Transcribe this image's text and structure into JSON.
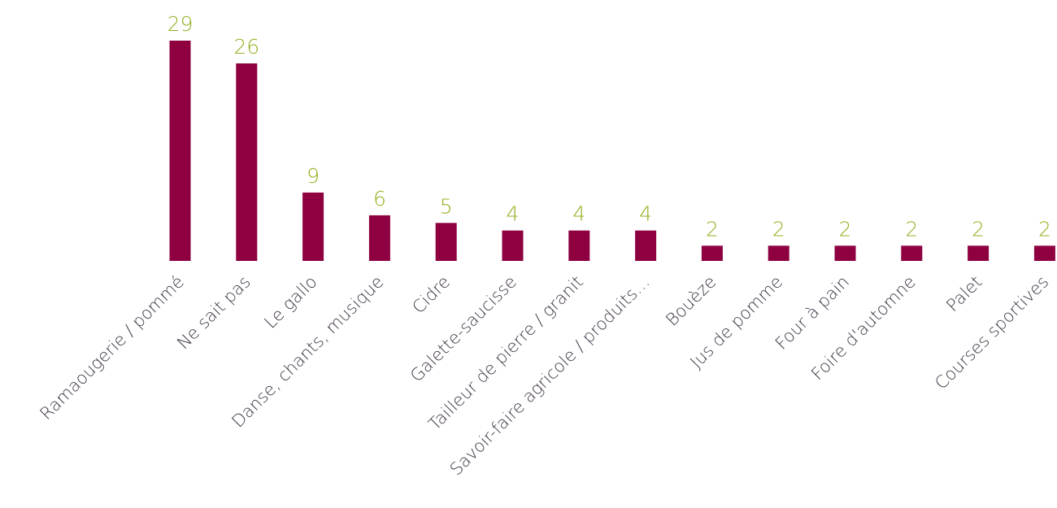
{
  "chart_data": {
    "type": "bar",
    "title": "",
    "xlabel": "",
    "ylabel": "",
    "ylim": [
      0,
      29
    ],
    "grid": false,
    "legend": "none",
    "categories": [
      "Ramaougerie / pommé",
      "Ne sait pas",
      "Le gallo",
      "Danse, chants, musique",
      "Cidre",
      "Galette-saucisse",
      "Tailleur de pierre / granit",
      "Savoir-faire agricole / produits…",
      "Bouèze",
      "Jus de pomme",
      "Four à pain",
      "Foire d'automne",
      "Palet",
      "Courses sportives"
    ],
    "series": [
      {
        "values": [
          29,
          26,
          9,
          6,
          5,
          4,
          4,
          4,
          2,
          2,
          2,
          2,
          2,
          2
        ]
      }
    ]
  },
  "colors": {
    "bar": "#8e0040",
    "value_label": "#92b122",
    "category_label": "#3f3545"
  }
}
